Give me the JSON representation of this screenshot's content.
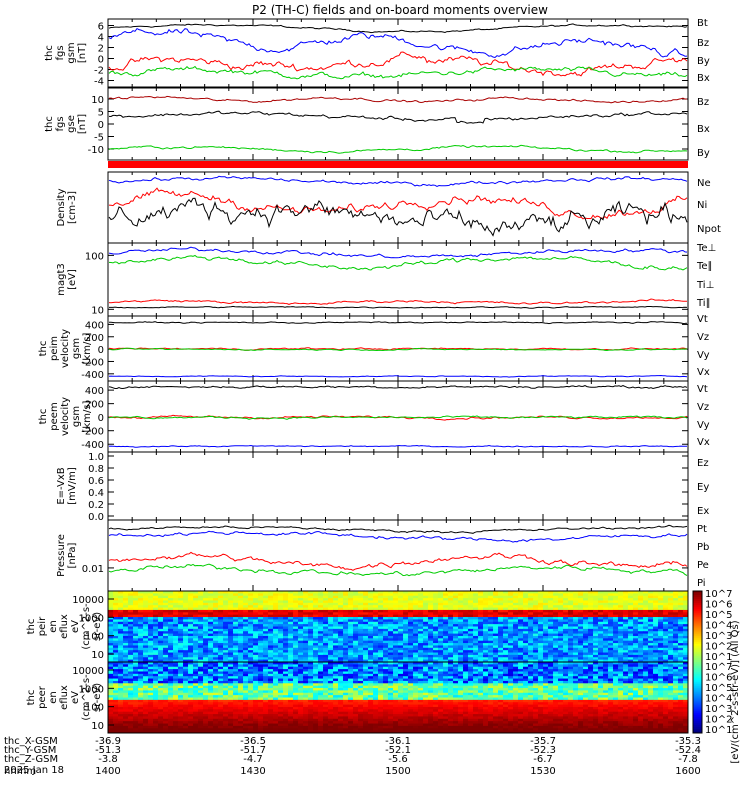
{
  "title": "P2 (TH-C) fields and on-board moments overview",
  "chart_data": [
    {
      "id": "fgs_gsm",
      "type": "line",
      "ylabel": [
        "thc",
        "fgs",
        "gsm",
        "[nT]"
      ],
      "ylim": [
        -5,
        7
      ],
      "yticks": [
        -4,
        -2,
        0,
        2,
        4,
        6
      ],
      "series": [
        {
          "name": "Bt",
          "color": "#000000"
        },
        {
          "name": "Bz",
          "color": "#ff0000"
        },
        {
          "name": "By",
          "color": "#00cc00"
        },
        {
          "name": "Bx",
          "color": "#0000ff"
        }
      ]
    },
    {
      "id": "fgs_gse",
      "type": "line",
      "ylabel": [
        "thc",
        "fgs",
        "gse",
        "[nT]"
      ],
      "ylim": [
        -14,
        14
      ],
      "yticks": [
        -10,
        -5,
        0,
        5,
        10
      ],
      "series": [
        {
          "name": "Bz",
          "color": "#aa0000"
        },
        {
          "name": "Bx",
          "color": "#000000"
        },
        {
          "name": "By",
          "color": "#00cc00"
        }
      ]
    },
    {
      "id": "density",
      "type": "line",
      "ylabel": [
        "Density",
        "[cm-3]"
      ],
      "log": true,
      "series": [
        {
          "name": "Ne",
          "color": "#ff0000"
        },
        {
          "name": "Ni",
          "color": "#000000"
        },
        {
          "name": "Npot",
          "color": "#0000ff"
        }
      ]
    },
    {
      "id": "temp",
      "type": "line",
      "ylabel": [
        "magt3",
        "[eV]"
      ],
      "log": true,
      "yticks": [
        {
          "v": 100,
          "label": "100"
        },
        {
          "v": 10,
          "label": "10"
        }
      ],
      "series": [
        {
          "name": "Te⊥",
          "color": "#ff0000"
        },
        {
          "name": "Te∥",
          "color": "#000000"
        },
        {
          "name": "Ti⊥",
          "color": "#0000ff"
        },
        {
          "name": "Ti∥",
          "color": "#00cc00"
        }
      ]
    },
    {
      "id": "peim_vel",
      "type": "line",
      "ylabel": [
        "thc",
        "peim",
        "velocity",
        "gsm",
        "[km/s]"
      ],
      "ylim": [
        -500,
        520
      ],
      "yticks": [
        -400,
        -200,
        0,
        200,
        400
      ],
      "series": [
        {
          "name": "Vt",
          "color": "#000000"
        },
        {
          "name": "Vz",
          "color": "#ff0000"
        },
        {
          "name": "Vy",
          "color": "#00cc00"
        },
        {
          "name": "Vx",
          "color": "#0000ff"
        }
      ]
    },
    {
      "id": "peem_vel",
      "type": "line",
      "ylabel": [
        "thc",
        "peem",
        "velocity",
        "gsm",
        "[km/s]"
      ],
      "ylim": [
        -500,
        520
      ],
      "yticks": [
        -400,
        -200,
        0,
        200,
        400
      ],
      "series": [
        {
          "name": "Vt",
          "color": "#000000"
        },
        {
          "name": "Vz",
          "color": "#ff0000"
        },
        {
          "name": "Vy",
          "color": "#00cc00"
        },
        {
          "name": "Vx",
          "color": "#0000ff"
        }
      ]
    },
    {
      "id": "efield",
      "type": "line",
      "ylabel": [
        "E=-VxB",
        "[mV/m]"
      ],
      "ylim": [
        -0.05,
        1.05
      ],
      "yticks": [
        0.0,
        0.2,
        0.4,
        0.6,
        0.8,
        1.0
      ],
      "series": [
        {
          "name": "Ez",
          "color": "#ff0000"
        },
        {
          "name": "Ey",
          "color": "#00cc00"
        },
        {
          "name": "Ex",
          "color": "#0000ff"
        }
      ]
    },
    {
      "id": "pressure",
      "type": "line",
      "ylabel": [
        "Pressure",
        "[nPa]"
      ],
      "log": true,
      "yticks": [
        {
          "v": 0.01,
          "label": "0.01"
        }
      ],
      "series": [
        {
          "name": "Pt",
          "color": "#000000"
        },
        {
          "name": "Pb",
          "color": "#ff0000"
        },
        {
          "name": "Pe",
          "color": "#00cc00"
        },
        {
          "name": "Pi",
          "color": "#0000ff"
        }
      ]
    },
    {
      "id": "peir_eflux",
      "type": "heatmap",
      "ylabel": [
        "thc",
        "peir",
        "en",
        "eflux",
        "eV",
        "(cm^2-s-",
        "sr-eV)"
      ],
      "log": true,
      "yticks": [
        {
          "v": 10000,
          "label": "10000"
        },
        {
          "v": 1000,
          "label": "1000"
        },
        {
          "v": 100,
          "label": "100"
        },
        {
          "v": 10,
          "label": "10"
        }
      ]
    },
    {
      "id": "peer_eflux",
      "type": "heatmap",
      "ylabel": [
        "thc",
        "peer",
        "en",
        "eflux",
        "eV",
        "(cm^2-s-",
        "sr-eV)"
      ],
      "log": true,
      "yticks": [
        {
          "v": 10000,
          "label": "10000"
        },
        {
          "v": 1000,
          "label": "1000"
        },
        {
          "v": 100,
          "label": "100"
        },
        {
          "v": 10,
          "label": "10"
        }
      ]
    }
  ],
  "colorbar": {
    "label": "[eV/(cm^2-s-str-eV)] (All Qs)",
    "ticks": [
      "10^1",
      "10^2",
      "10^3",
      "10^4",
      "10^5",
      "10^6",
      "10^7",
      "10^1",
      "10^2",
      "10^3",
      "10^4",
      "10^5",
      "10^6",
      "10^7"
    ]
  },
  "x_axis": {
    "ticks": [
      {
        "hhmm": "1400",
        "x": "-36.9",
        "y": "-51.3",
        "z": "-3.8"
      },
      {
        "hhmm": "1430",
        "x": "-36.5",
        "y": "-51.7",
        "z": "-4.7"
      },
      {
        "hhmm": "1500",
        "x": "-36.1",
        "y": "-52.1",
        "z": "-5.6"
      },
      {
        "hhmm": "1530",
        "x": "-35.7",
        "y": "-52.3",
        "z": "-6.7"
      },
      {
        "hhmm": "1600",
        "x": "-35.3",
        "y": "-52.4",
        "z": "-7.8"
      }
    ],
    "row_labels": [
      "thc_X-GSM",
      "thc_Y-GSM",
      "thc_Z-GSM",
      "hhmm"
    ],
    "date": "2025 Jan 18"
  }
}
